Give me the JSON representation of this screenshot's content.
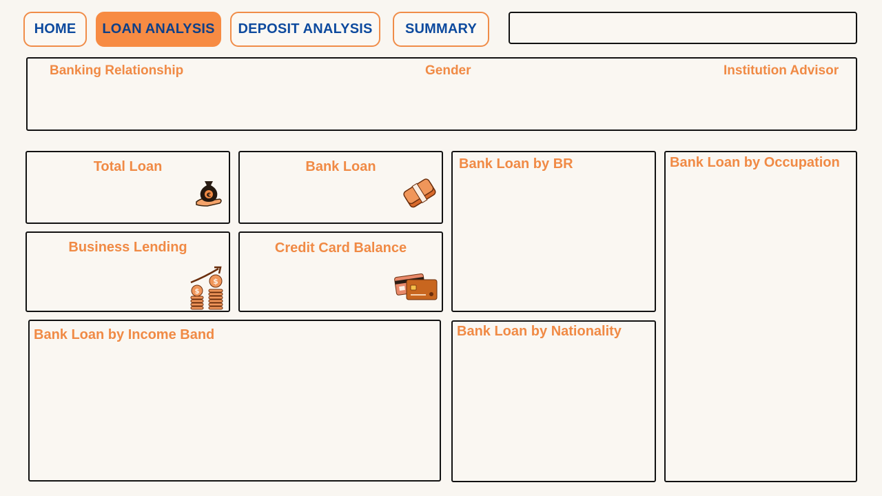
{
  "nav": {
    "home": "HOME",
    "loan_analysis": "LOAN ANALYSIS",
    "deposit_analysis": "DEPOSIT ANALYSIS",
    "summary": "SUMMARY",
    "active": "loan_analysis"
  },
  "search": {
    "value": "",
    "placeholder": ""
  },
  "filters": {
    "banking_relationship": "Banking Relationship",
    "gender": "Gender",
    "institution_advisor": "Institution Advisor"
  },
  "kpis": {
    "total_loan": "Total Loan",
    "bank_loan": "Bank Loan",
    "business_lending": "Business Lending",
    "credit_card_balance": "Credit Card Balance"
  },
  "charts": {
    "bank_loan_by_br": "Bank Loan by BR",
    "bank_loan_by_occupation": "Bank Loan by Occupation",
    "bank_loan_by_income_band": "Bank Loan by Income Band",
    "bank_loan_by_nationality": "Bank Loan by Nationality"
  },
  "icons": {
    "total_loan": "money-bag-icon",
    "bank_loan": "cash-stack-icon",
    "business_lending": "growth-coins-icon",
    "credit_card_balance": "credit-cards-icon"
  },
  "colors": {
    "accent": "#f08a45",
    "nav_text": "#0d4a9e",
    "background": "#f9f6f1",
    "border": "#111111"
  }
}
